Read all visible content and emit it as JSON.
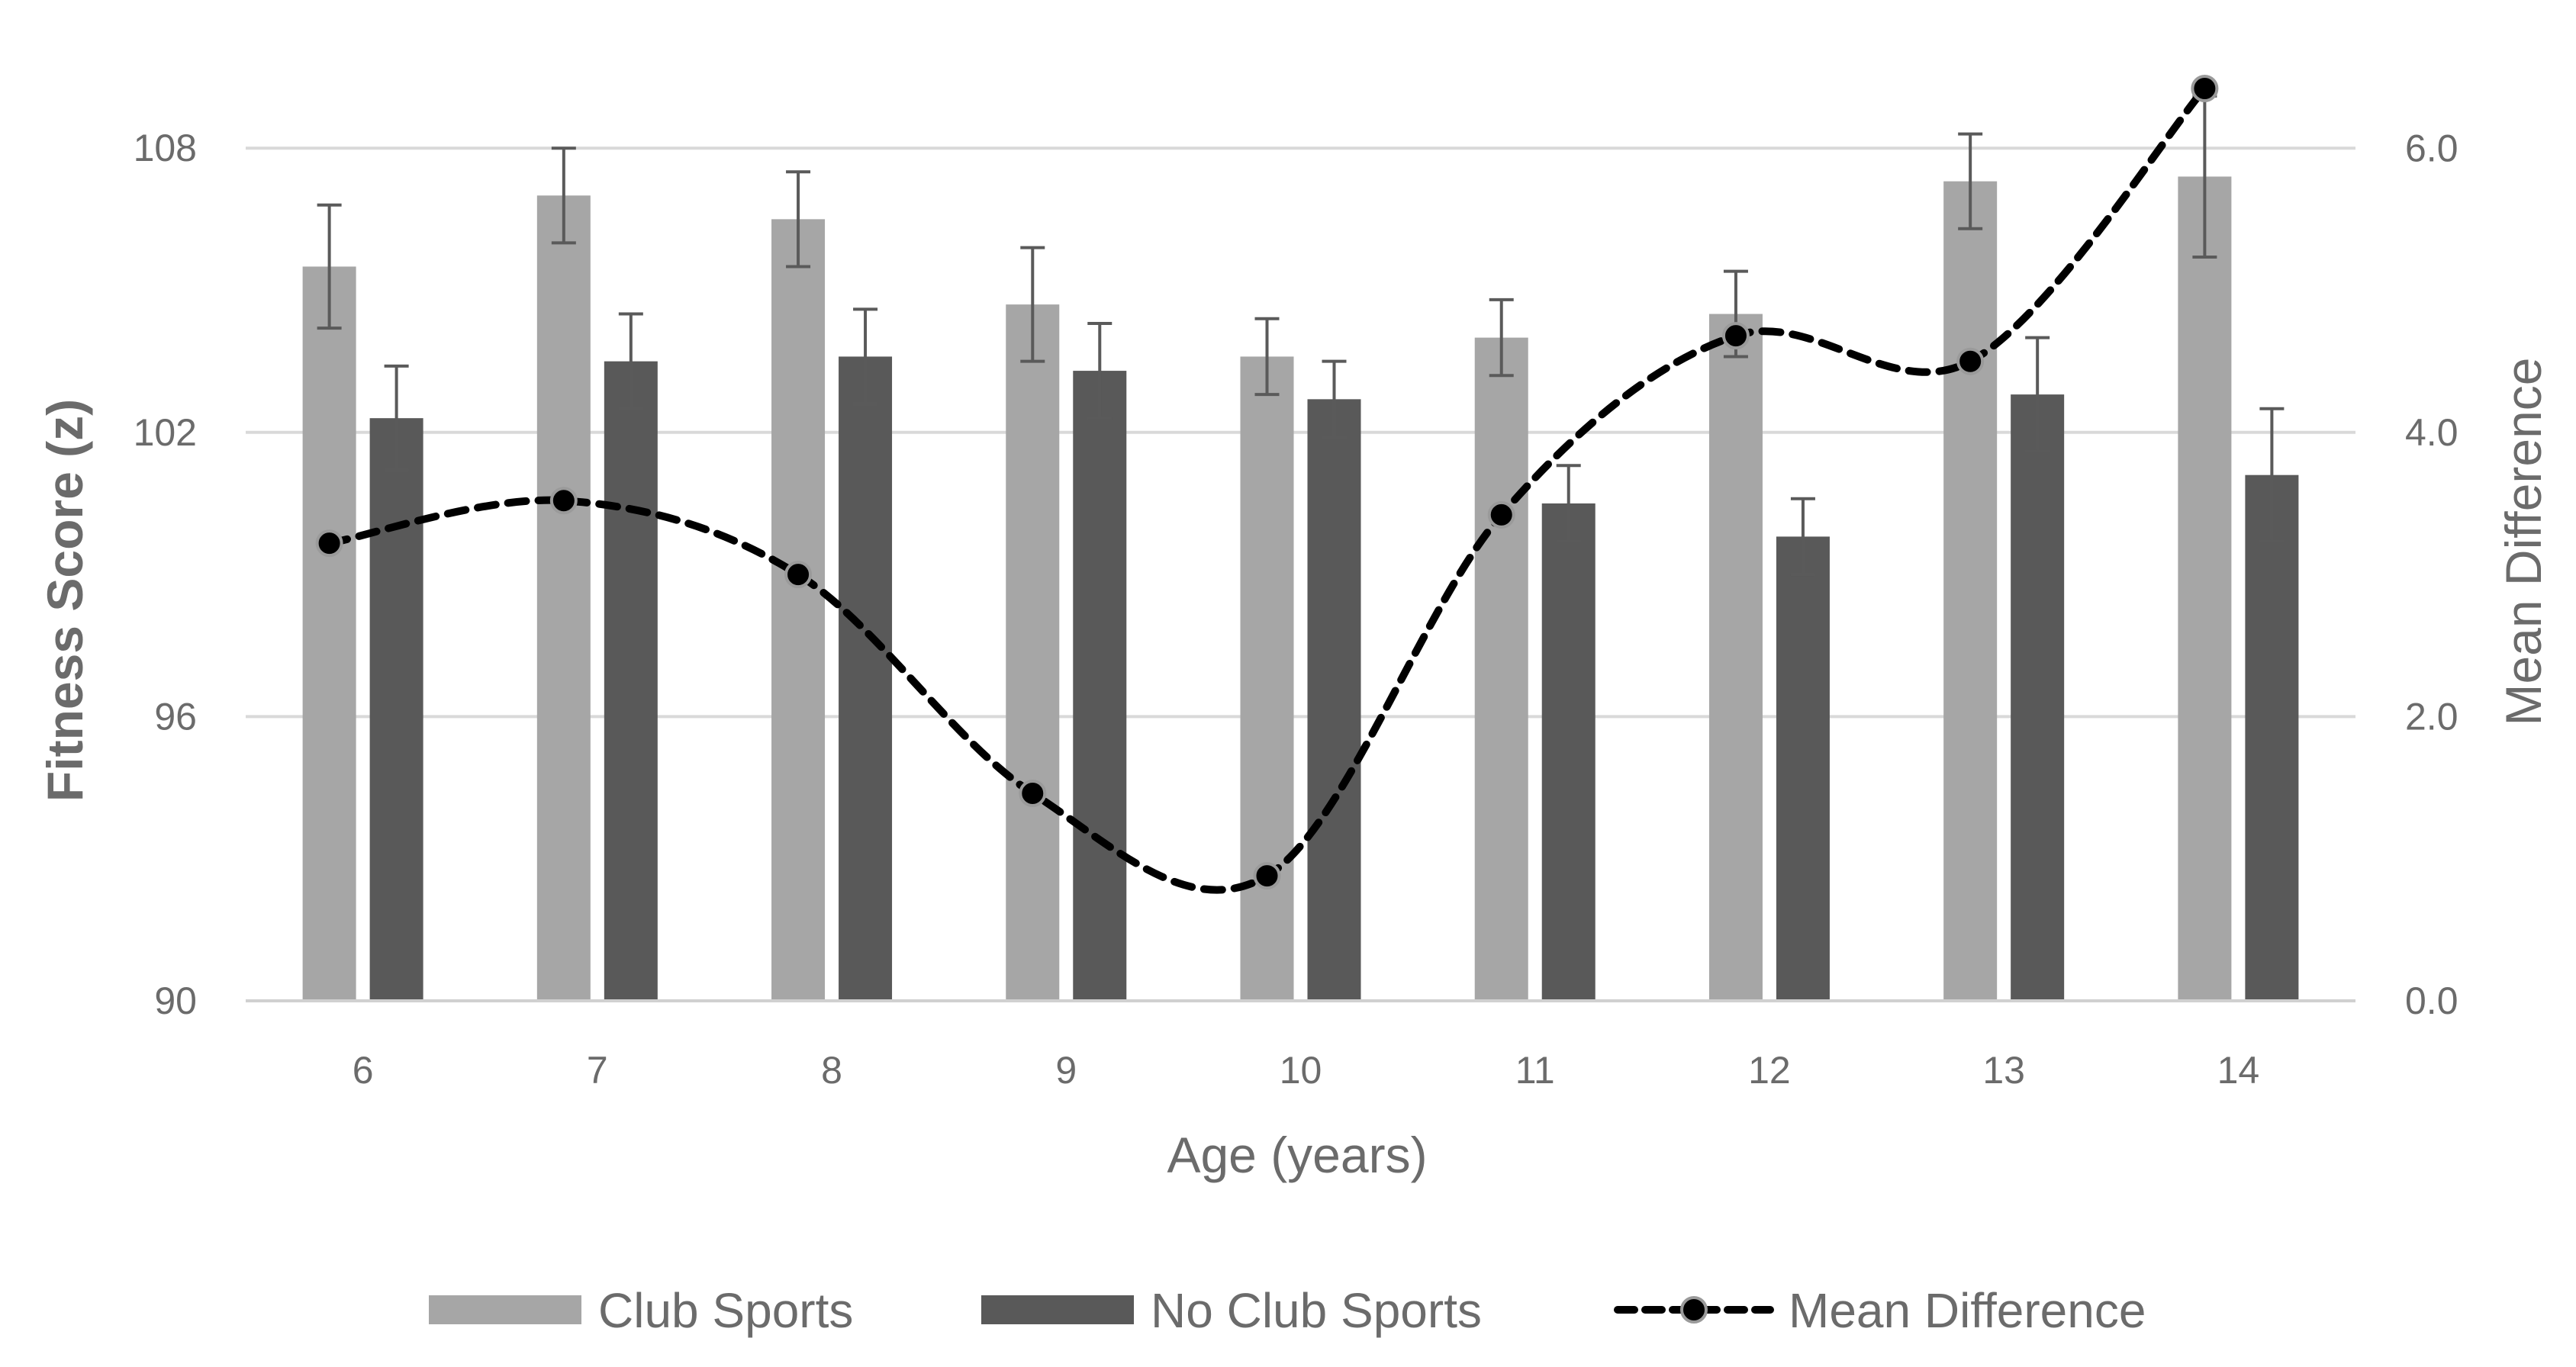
{
  "chart_data": {
    "type": "bar",
    "categories": [
      "6",
      "7",
      "8",
      "9",
      "10",
      "11",
      "12",
      "13",
      "14"
    ],
    "series": [
      {
        "name": "Club Sports",
        "axis": "left",
        "color": "#a6a6a6",
        "values": [
          105.5,
          107.0,
          106.5,
          104.7,
          103.6,
          104.0,
          104.5,
          107.3,
          107.4
        ],
        "error": [
          1.3,
          1.0,
          1.0,
          1.2,
          0.8,
          0.8,
          0.9,
          1.0,
          1.7
        ]
      },
      {
        "name": "No Club Sports",
        "axis": "left",
        "color": "#595959",
        "values": [
          102.3,
          103.5,
          103.6,
          103.3,
          102.7,
          100.5,
          99.8,
          102.8,
          101.1
        ],
        "error": [
          1.1,
          1.0,
          1.0,
          1.0,
          0.8,
          0.8,
          0.8,
          1.2,
          1.4
        ]
      },
      {
        "name": "Mean Difference",
        "type": "line",
        "axis": "right",
        "color": "#000000",
        "values": [
          3.22,
          3.52,
          3.0,
          1.46,
          0.88,
          3.42,
          4.68,
          4.5,
          6.42
        ]
      }
    ],
    "title": "",
    "xlabel": "Age (years)",
    "ylabel": "Fitness Score (z)",
    "y2label": "Mean Difference",
    "ylim": [
      90,
      110
    ],
    "yticks": [
      90,
      96,
      102,
      108
    ],
    "ytick_labels": [
      "90",
      "96",
      "102",
      "108"
    ],
    "y2lim": [
      0,
      6.667
    ],
    "y2ticks": [
      0,
      2,
      4,
      6
    ],
    "y2tick_labels": [
      "0.0",
      "2.0",
      "4.0",
      "6.0"
    ],
    "grid": true,
    "legend": "bottom"
  }
}
